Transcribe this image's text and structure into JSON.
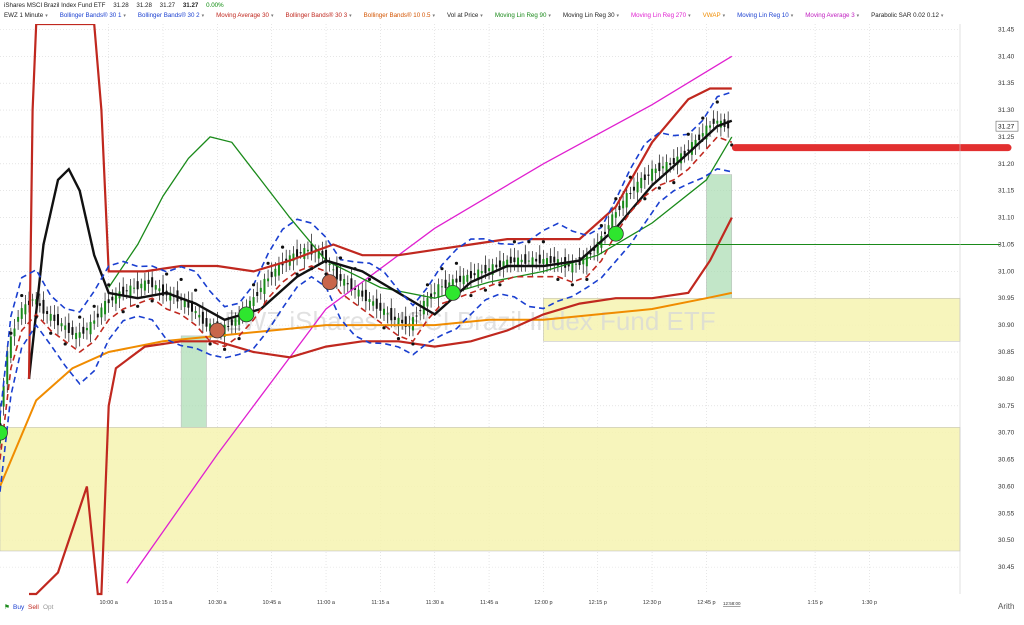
{
  "header": {
    "title": "iShares MSCI Brazil Index Fund ETF",
    "bid": "31.28",
    "ask": "31.28",
    "last": "31.27",
    "last_bold": "31.27",
    "change": "0.00%"
  },
  "indicators": [
    {
      "label": "EWZ 1 Minute",
      "color": "#222222"
    },
    {
      "label": "Bollinger Bands® 30 1",
      "color": "#1a3fd0"
    },
    {
      "label": "Bollinger Bands® 30 2",
      "color": "#1a3fd0"
    },
    {
      "label": "Moving Average 30",
      "color": "#c0281f"
    },
    {
      "label": "Bollinger Bands® 30 3",
      "color": "#c0281f"
    },
    {
      "label": "Bollinger Bands® 10 0.5",
      "color": "#d35400"
    },
    {
      "label": "Vol at Price",
      "color": "#222222"
    },
    {
      "label": "Moving Lin Reg 90",
      "color": "#1a8a1a"
    },
    {
      "label": "Moving Lin Reg 30",
      "color": "#222222"
    },
    {
      "label": "Moving Lin Reg 270",
      "color": "#e020d0"
    },
    {
      "label": "VWAP",
      "color": "#f08c00"
    },
    {
      "label": "Moving Lin Reg 10",
      "color": "#1a3fd0"
    },
    {
      "label": "Moving Average 3",
      "color": "#c020c0"
    },
    {
      "label": "Parabolic SAR 0.02 0.12",
      "color": "#222222"
    }
  ],
  "watermark": "EWZ iShares MSCI Brazil Index Fund ETF",
  "footer": {
    "buy": "Buy",
    "sell": "Sell",
    "opt": "Opt",
    "scale": "Arith"
  },
  "current_price_tag": "31.27",
  "timer": "12:58:00",
  "colors": {
    "up": "#1a8a1a",
    "down": "#c0281f",
    "bands": "#1a3fd0",
    "vwap": "#f08c00",
    "linreg270": "#e020d0",
    "linreg90": "#1a8a1a",
    "zone_yellow": "#f6f3b0",
    "zone_green": "#a8dcb0",
    "zone_red": "#e8aaaa",
    "level_line": "#e23030"
  },
  "chart_data": {
    "type": "line",
    "title": "EWZ 1 Minute",
    "ylabel": "",
    "xlabel": "",
    "ylim": [
      30.4,
      31.46
    ],
    "y_ticks": [
      31.45,
      31.4,
      31.35,
      31.3,
      31.25,
      31.2,
      31.15,
      31.1,
      31.05,
      31.0,
      30.95,
      30.9,
      30.85,
      30.8,
      30.75,
      30.7,
      30.65,
      30.6,
      30.55,
      30.5,
      30.45
    ],
    "x_ticks": [
      "10:00 a",
      "10:15 a",
      "10:30 a",
      "10:45 a",
      "11:00 a",
      "11:15 a",
      "11:30 a",
      "11:45 a",
      "12:00 p",
      "12:15 p",
      "12:30 p",
      "12:45 p",
      "1:15 p",
      "1:30 p"
    ],
    "x_tick_minutes": [
      30,
      45,
      60,
      75,
      90,
      105,
      120,
      135,
      150,
      165,
      180,
      195,
      225,
      240
    ],
    "xlim_minutes": [
      0,
      265
    ],
    "grid": true,
    "close_series": {
      "name": "EWZ 1 Minute",
      "x": [
        0,
        3,
        6,
        10,
        14,
        18,
        22,
        26,
        30,
        34,
        38,
        42,
        46,
        50,
        54,
        58,
        62,
        66,
        70,
        74,
        78,
        82,
        86,
        90,
        94,
        98,
        102,
        106,
        110,
        114,
        118,
        122,
        126,
        130,
        134,
        138,
        142,
        146,
        150,
        154,
        158,
        162,
        166,
        170,
        174,
        178,
        182,
        186,
        190,
        194,
        198,
        202
      ],
      "values": [
        30.68,
        30.85,
        30.92,
        30.95,
        30.92,
        30.9,
        30.88,
        30.9,
        30.94,
        30.96,
        30.97,
        30.98,
        30.96,
        30.95,
        30.93,
        30.9,
        30.89,
        30.91,
        30.94,
        30.98,
        31.01,
        31.03,
        31.04,
        31.03,
        30.99,
        30.97,
        30.95,
        30.93,
        30.91,
        30.9,
        30.94,
        30.97,
        30.98,
        30.99,
        31.0,
        31.01,
        31.02,
        31.02,
        31.02,
        31.02,
        31.01,
        31.02,
        31.05,
        31.1,
        31.14,
        31.17,
        31.19,
        31.2,
        31.22,
        31.25,
        31.28,
        31.27
      ]
    },
    "series": [
      {
        "name": "Moving Lin Reg 270",
        "x": [
          35,
          60,
          90,
          120,
          150,
          180,
          202
        ],
        "values": [
          30.42,
          30.66,
          30.93,
          31.08,
          31.2,
          31.31,
          31.4
        ]
      },
      {
        "name": "VWAP",
        "x": [
          0,
          10,
          20,
          30,
          45,
          60,
          75,
          90,
          105,
          120,
          135,
          150,
          165,
          180,
          195,
          202
        ],
        "values": [
          30.6,
          30.76,
          30.82,
          30.85,
          30.87,
          30.88,
          30.89,
          30.9,
          30.9,
          30.9,
          30.91,
          30.91,
          30.92,
          30.93,
          30.95,
          30.96
        ]
      },
      {
        "name": "Moving Lin Reg 90",
        "x": [
          30,
          38,
          45,
          52,
          58,
          64,
          72,
          80,
          90,
          105,
          120,
          135,
          150,
          165,
          180,
          195,
          202
        ],
        "values": [
          30.97,
          31.05,
          31.14,
          31.21,
          31.25,
          31.24,
          31.17,
          31.1,
          31.02,
          30.97,
          30.95,
          30.98,
          31.0,
          31.03,
          31.09,
          31.17,
          31.25
        ]
      },
      {
        "name": "Moving Lin Reg 30",
        "x": [
          8,
          12,
          16,
          19,
          22,
          26,
          30,
          38,
          46,
          54,
          62,
          72,
          82,
          90,
          100,
          110,
          120,
          130,
          140,
          150,
          160,
          170,
          180,
          190,
          198,
          202
        ],
        "values": [
          30.8,
          31.05,
          31.17,
          31.19,
          31.15,
          31.03,
          30.96,
          30.95,
          30.96,
          30.94,
          30.91,
          30.93,
          30.99,
          31.02,
          31.0,
          30.96,
          30.92,
          30.98,
          31.01,
          31.01,
          31.02,
          31.08,
          31.16,
          31.22,
          31.27,
          31.28
        ]
      },
      {
        "name": "Bollinger Bands® 30 3 Upper",
        "x": [
          8,
          9,
          10,
          11,
          12,
          14,
          18,
          22,
          26,
          28,
          30,
          40,
          50,
          60,
          70,
          80,
          88,
          92,
          100,
          110,
          120,
          130,
          140,
          150,
          160,
          170,
          180,
          190,
          196,
          202
        ],
        "values": [
          30.8,
          31.3,
          31.46,
          31.46,
          31.46,
          31.46,
          31.46,
          31.46,
          31.46,
          31.3,
          31.0,
          31.0,
          31.01,
          31.01,
          31.0,
          31.02,
          31.04,
          31.05,
          31.03,
          31.03,
          31.04,
          31.05,
          31.06,
          31.06,
          31.06,
          31.12,
          31.24,
          31.32,
          31.34,
          31.34
        ]
      },
      {
        "name": "Bollinger Bands® 30 3 Lower",
        "x": [
          8,
          10,
          16,
          20,
          24,
          27,
          28,
          30,
          32,
          40,
          50,
          60,
          70,
          80,
          90,
          100,
          110,
          120,
          130,
          140,
          150,
          160,
          170,
          180,
          190,
          196,
          202
        ],
        "values": [
          30.4,
          30.4,
          30.44,
          30.52,
          30.6,
          30.4,
          30.4,
          30.75,
          30.82,
          30.86,
          30.87,
          30.87,
          30.85,
          30.84,
          30.86,
          30.87,
          30.87,
          30.86,
          30.87,
          30.89,
          30.92,
          30.94,
          30.95,
          30.95,
          30.96,
          31.02,
          31.1
        ]
      }
    ],
    "zones": [
      {
        "from": 30.48,
        "to": 30.71,
        "color": "yellow"
      },
      {
        "from": 30.87,
        "to": 30.95,
        "color": "yellow"
      },
      {
        "from": 30.95,
        "to": 31.18,
        "color": "green"
      },
      {
        "from": 30.71,
        "to": 30.88,
        "color": "green"
      }
    ],
    "horizontal_levels": [
      {
        "value": 31.23,
        "color": "red"
      },
      {
        "value": 31.05,
        "color": "green"
      }
    ],
    "signals": [
      {
        "x": 0,
        "value": 30.7,
        "type": "buy"
      },
      {
        "x": 60,
        "value": 30.89,
        "type": "sell"
      },
      {
        "x": 68,
        "value": 30.92,
        "type": "buy"
      },
      {
        "x": 91,
        "value": 30.98,
        "type": "sell"
      },
      {
        "x": 125,
        "value": 30.96,
        "type": "buy"
      },
      {
        "x": 170,
        "value": 31.07,
        "type": "buy"
      }
    ],
    "legend": "top-left"
  }
}
